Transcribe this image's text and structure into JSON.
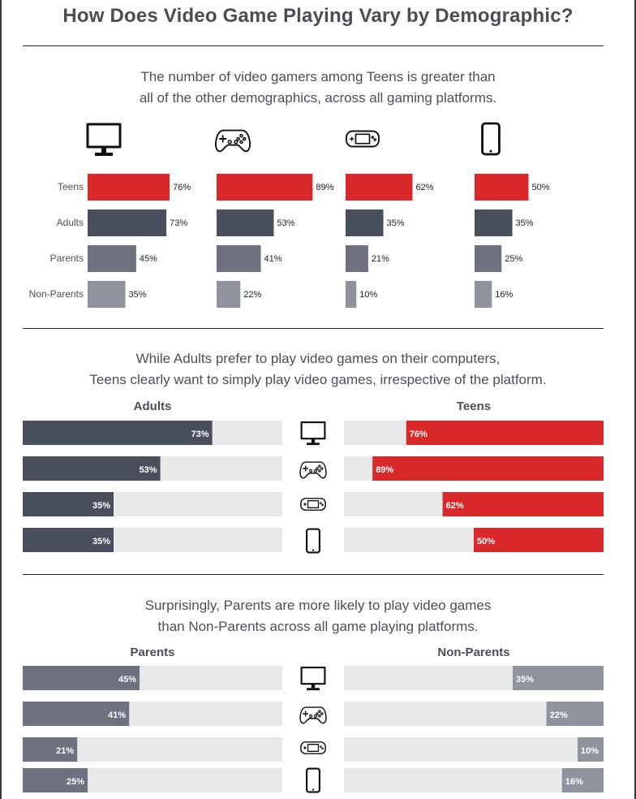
{
  "title": "How Does Video Game Playing Vary by Demographic?",
  "colors": {
    "teens": "#d9292b",
    "adults": "#4a4f5e",
    "parents": "#6d7180",
    "non_parents": "#8f939e",
    "track": "#e8e8ea",
    "rule": "#222222"
  },
  "platform_icons": [
    "desktop-monitor-icon",
    "game-controller-icon",
    "handheld-console-icon",
    "smartphone-icon"
  ],
  "section1": {
    "subtitle_line1": "The number of video gamers among Teens is greater than",
    "subtitle_line2": "all of the other demographics, across all gaming platforms."
  },
  "section2": {
    "subtitle_line1": "While Adults prefer to play video games on their computers,",
    "subtitle_line2": "Teens clearly want to simply play video games, irrespective of the platform.",
    "left_header": "Adults",
    "right_header": "Teens"
  },
  "section3": {
    "subtitle_line1": "Surprisingly, Parents are more likely to play video games",
    "subtitle_line2": "than Non-Parents across all game playing platforms.",
    "left_header": "Parents",
    "right_header": "Non-Parents"
  },
  "chart_data": [
    {
      "type": "bar",
      "orientation": "horizontal",
      "categories": [
        "Teens",
        "Adults",
        "Parents",
        "Non-Parents"
      ],
      "series": [
        {
          "values": [
            76,
            73,
            45,
            35
          ]
        },
        {
          "values": [
            89,
            53,
            41,
            22
          ]
        },
        {
          "values": [
            62,
            35,
            21,
            10
          ]
        },
        {
          "values": [
            50,
            35,
            25,
            16
          ]
        }
      ],
      "unit": "%",
      "xlim": [
        0,
        100
      ]
    },
    {
      "type": "bar",
      "orientation": "horizontal",
      "series": [
        {
          "name": "Adults",
          "values": [
            73,
            53,
            35,
            35
          ]
        },
        {
          "name": "Teens",
          "values": [
            76,
            89,
            62,
            50
          ]
        }
      ],
      "unit": "%",
      "xlim": [
        0,
        100
      ]
    },
    {
      "type": "bar",
      "orientation": "horizontal",
      "series": [
        {
          "name": "Parents",
          "values": [
            45,
            41,
            21,
            25
          ]
        },
        {
          "name": "Non-Parents",
          "values": [
            35,
            22,
            10,
            16
          ]
        }
      ],
      "unit": "%",
      "xlim": [
        0,
        100
      ]
    }
  ]
}
